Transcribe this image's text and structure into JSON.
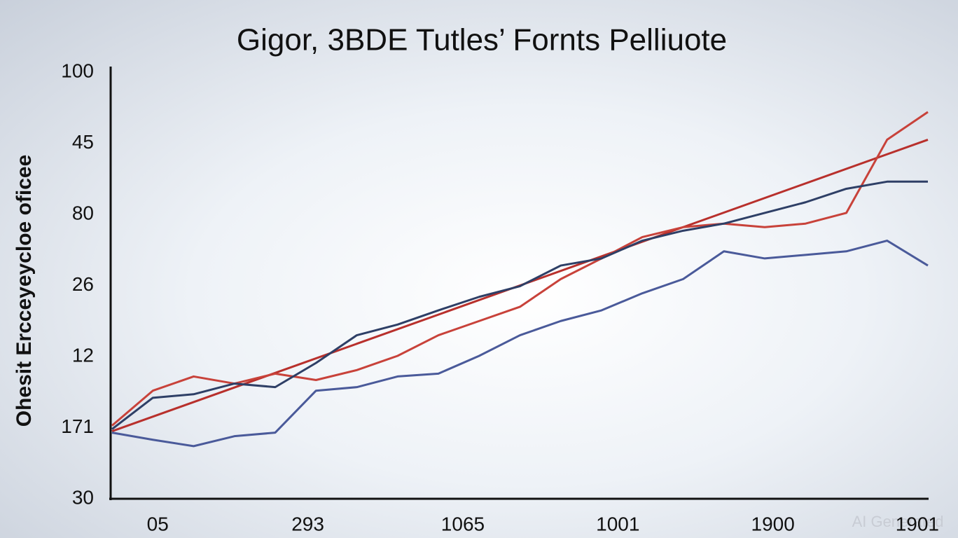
{
  "chart_data": {
    "type": "line",
    "title": "Gigor, 3BDE Tutles’ Fornts Pelliuote",
    "y_label": "Ohesit Ercceyeycloe oficee",
    "watermark": "AI Generated",
    "x": [
      0,
      5,
      10,
      15,
      20,
      25,
      30,
      35,
      40,
      45,
      50,
      55,
      60,
      65,
      70,
      75,
      80,
      85,
      90,
      95,
      100
    ],
    "xlim": [
      0,
      100
    ],
    "xticks": [
      {
        "value": 5.6,
        "label": "05"
      },
      {
        "value": 24,
        "label": "293"
      },
      {
        "value": 43,
        "label": "1065"
      },
      {
        "value": 62,
        "label": "1001"
      },
      {
        "value": 81,
        "label": "1900"
      },
      {
        "value": 98.7,
        "label": "1901"
      }
    ],
    "ylim": [
      0,
      6
    ],
    "yticks": [
      {
        "value": 0,
        "label": "30"
      },
      {
        "value": 1,
        "label": "171"
      },
      {
        "value": 2,
        "label": "12"
      },
      {
        "value": 3,
        "label": "26"
      },
      {
        "value": 4,
        "label": "80"
      },
      {
        "value": 5,
        "label": "45"
      },
      {
        "value": 6,
        "label": "100"
      }
    ],
    "grid": false,
    "series": [
      {
        "name": "trend",
        "color": "#b8302c",
        "values": [
          0.95,
          null,
          null,
          null,
          null,
          null,
          null,
          null,
          null,
          null,
          null,
          null,
          null,
          null,
          null,
          null,
          null,
          null,
          null,
          null,
          5.05
        ]
      },
      {
        "name": "red",
        "color": "#c8423a",
        "values": [
          1.03,
          1.52,
          1.72,
          1.62,
          1.76,
          1.67,
          1.81,
          2.01,
          2.3,
          2.5,
          2.7,
          3.09,
          3.38,
          3.68,
          3.82,
          3.87,
          3.82,
          3.87,
          4.02,
          5.05,
          5.44
        ]
      },
      {
        "name": "navy",
        "color": "#2e3f66",
        "values": [
          0.98,
          1.42,
          1.47,
          1.62,
          1.57,
          1.91,
          2.3,
          2.45,
          2.65,
          2.84,
          2.99,
          3.28,
          3.38,
          3.63,
          3.77,
          3.87,
          4.02,
          4.17,
          4.36,
          4.46,
          4.46
        ]
      },
      {
        "name": "blue",
        "color": "#4a5a9a",
        "values": [
          0.93,
          0.83,
          0.74,
          0.88,
          0.93,
          1.52,
          1.57,
          1.72,
          1.76,
          2.01,
          2.3,
          2.5,
          2.65,
          2.89,
          3.09,
          3.48,
          3.38,
          3.43,
          3.48,
          3.63,
          3.28
        ]
      }
    ]
  }
}
